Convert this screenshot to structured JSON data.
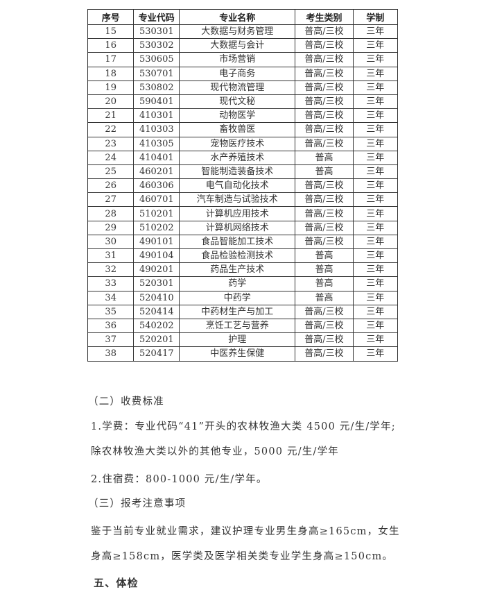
{
  "table": {
    "headers": [
      "序号",
      "专业代码",
      "专业名称",
      "考生类别",
      "学制"
    ],
    "rows": [
      [
        "15",
        "530301",
        "大数据与财务管理",
        "普高/三校",
        "三年"
      ],
      [
        "16",
        "530302",
        "大数据与会计",
        "普高/三校",
        "三年"
      ],
      [
        "17",
        "530605",
        "市场营销",
        "普高/三校",
        "三年"
      ],
      [
        "18",
        "530701",
        "电子商务",
        "普高/三校",
        "三年"
      ],
      [
        "19",
        "530802",
        "现代物流管理",
        "普高/三校",
        "三年"
      ],
      [
        "20",
        "590401",
        "现代文秘",
        "普高/三校",
        "三年"
      ],
      [
        "21",
        "410301",
        "动物医学",
        "普高/三校",
        "三年"
      ],
      [
        "22",
        "410303",
        "畜牧兽医",
        "普高/三校",
        "三年"
      ],
      [
        "23",
        "410305",
        "宠物医疗技术",
        "普高/三校",
        "三年"
      ],
      [
        "24",
        "410401",
        "水产养殖技术",
        "普高",
        "三年"
      ],
      [
        "25",
        "460201",
        "智能制造装备技术",
        "普高",
        "三年"
      ],
      [
        "26",
        "460306",
        "电气自动化技术",
        "普高/三校",
        "三年"
      ],
      [
        "27",
        "460701",
        "汽车制造与试验技术",
        "普高/三校",
        "三年"
      ],
      [
        "28",
        "510201",
        "计算机应用技术",
        "普高/三校",
        "三年"
      ],
      [
        "29",
        "510202",
        "计算机网络技术",
        "普高/三校",
        "三年"
      ],
      [
        "30",
        "490101",
        "食品智能加工技术",
        "普高/三校",
        "三年"
      ],
      [
        "31",
        "490104",
        "食品检验检测技术",
        "普高",
        "三年"
      ],
      [
        "32",
        "490201",
        "药品生产技术",
        "普高",
        "三年"
      ],
      [
        "33",
        "520301",
        "药学",
        "普高",
        "三年"
      ],
      [
        "34",
        "520410",
        "中药学",
        "普高",
        "三年"
      ],
      [
        "35",
        "520414",
        "中药材生产与加工",
        "普高/三校",
        "三年"
      ],
      [
        "36",
        "540202",
        "烹饪工艺与营养",
        "普高/三校",
        "三年"
      ],
      [
        "37",
        "520201",
        "护理",
        "普高/三校",
        "三年"
      ],
      [
        "38",
        "520417",
        "中医养生保健",
        "普高/三校",
        "三年"
      ]
    ]
  },
  "text": {
    "fees_heading": "（二）收费标准",
    "tuition_line1": "1.学费：专业代码“41”开头的农林牧渔大类 4500 元/生/学年;",
    "tuition_line2": "除农林牧渔大类以外的其他专业，5000 元/生/学年",
    "dorm_fee": "2.住宿费：800-1000 元/生/学年。",
    "notes_heading": "（三）报考注意事项",
    "notes_line1": "鉴于当前专业就业需求，建议护理专业男生身高≥165cm，女生",
    "notes_line2": "身高≥158cm，医学类及医学相关类专业学生身高≥150cm。",
    "section5_heading": "五、体检"
  }
}
